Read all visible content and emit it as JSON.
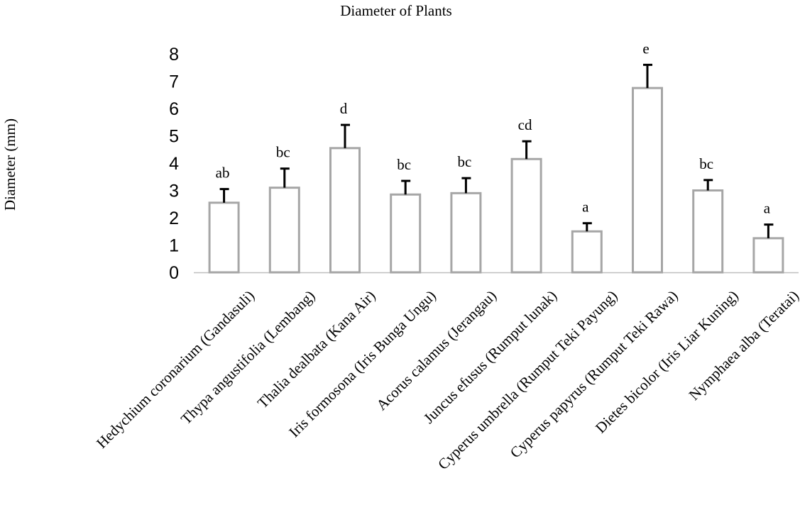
{
  "chart_data": {
    "type": "bar",
    "title": "Diameter of Plants",
    "xlabel": "",
    "ylabel": "Diameter (mm)",
    "ylim": [
      0,
      8
    ],
    "yticks": [
      0,
      1,
      2,
      3,
      4,
      5,
      6,
      7,
      8
    ],
    "grid": false,
    "legend": "none",
    "categories": [
      "Hedychium coronarium (Gandasuli)",
      "Thypa angustifolia (Lembang)",
      "Thalia dealbata (Kana Air)",
      "Iris formosona (Iris Bunga Ungu)",
      "Acorus calamus (Jerangau)",
      "Juncus efusus (Rumput lunak)",
      "Cyperus umbrella (Rumput Teki Payung)",
      "Cyperus papyrus (Rumput Teki Rawa)",
      "Dietes bicolor (Iris Liar Kuning)",
      "Nymphaea alba (Teratai)"
    ],
    "values": [
      2.55,
      3.1,
      4.55,
      2.85,
      2.9,
      4.15,
      1.5,
      6.75,
      3.0,
      1.25
    ],
    "errors": [
      0.5,
      0.7,
      0.85,
      0.5,
      0.55,
      0.65,
      0.3,
      0.85,
      0.38,
      0.5
    ],
    "annotations": [
      "ab",
      "bc",
      "d",
      "bc",
      "bc",
      "cd",
      "a",
      "e",
      "bc",
      "a"
    ],
    "colors": {
      "bar_fill": "#ffffff",
      "bar_stroke": "#a6a6a6",
      "error_bar": "#000000",
      "axis": "#bfbfbf"
    }
  }
}
